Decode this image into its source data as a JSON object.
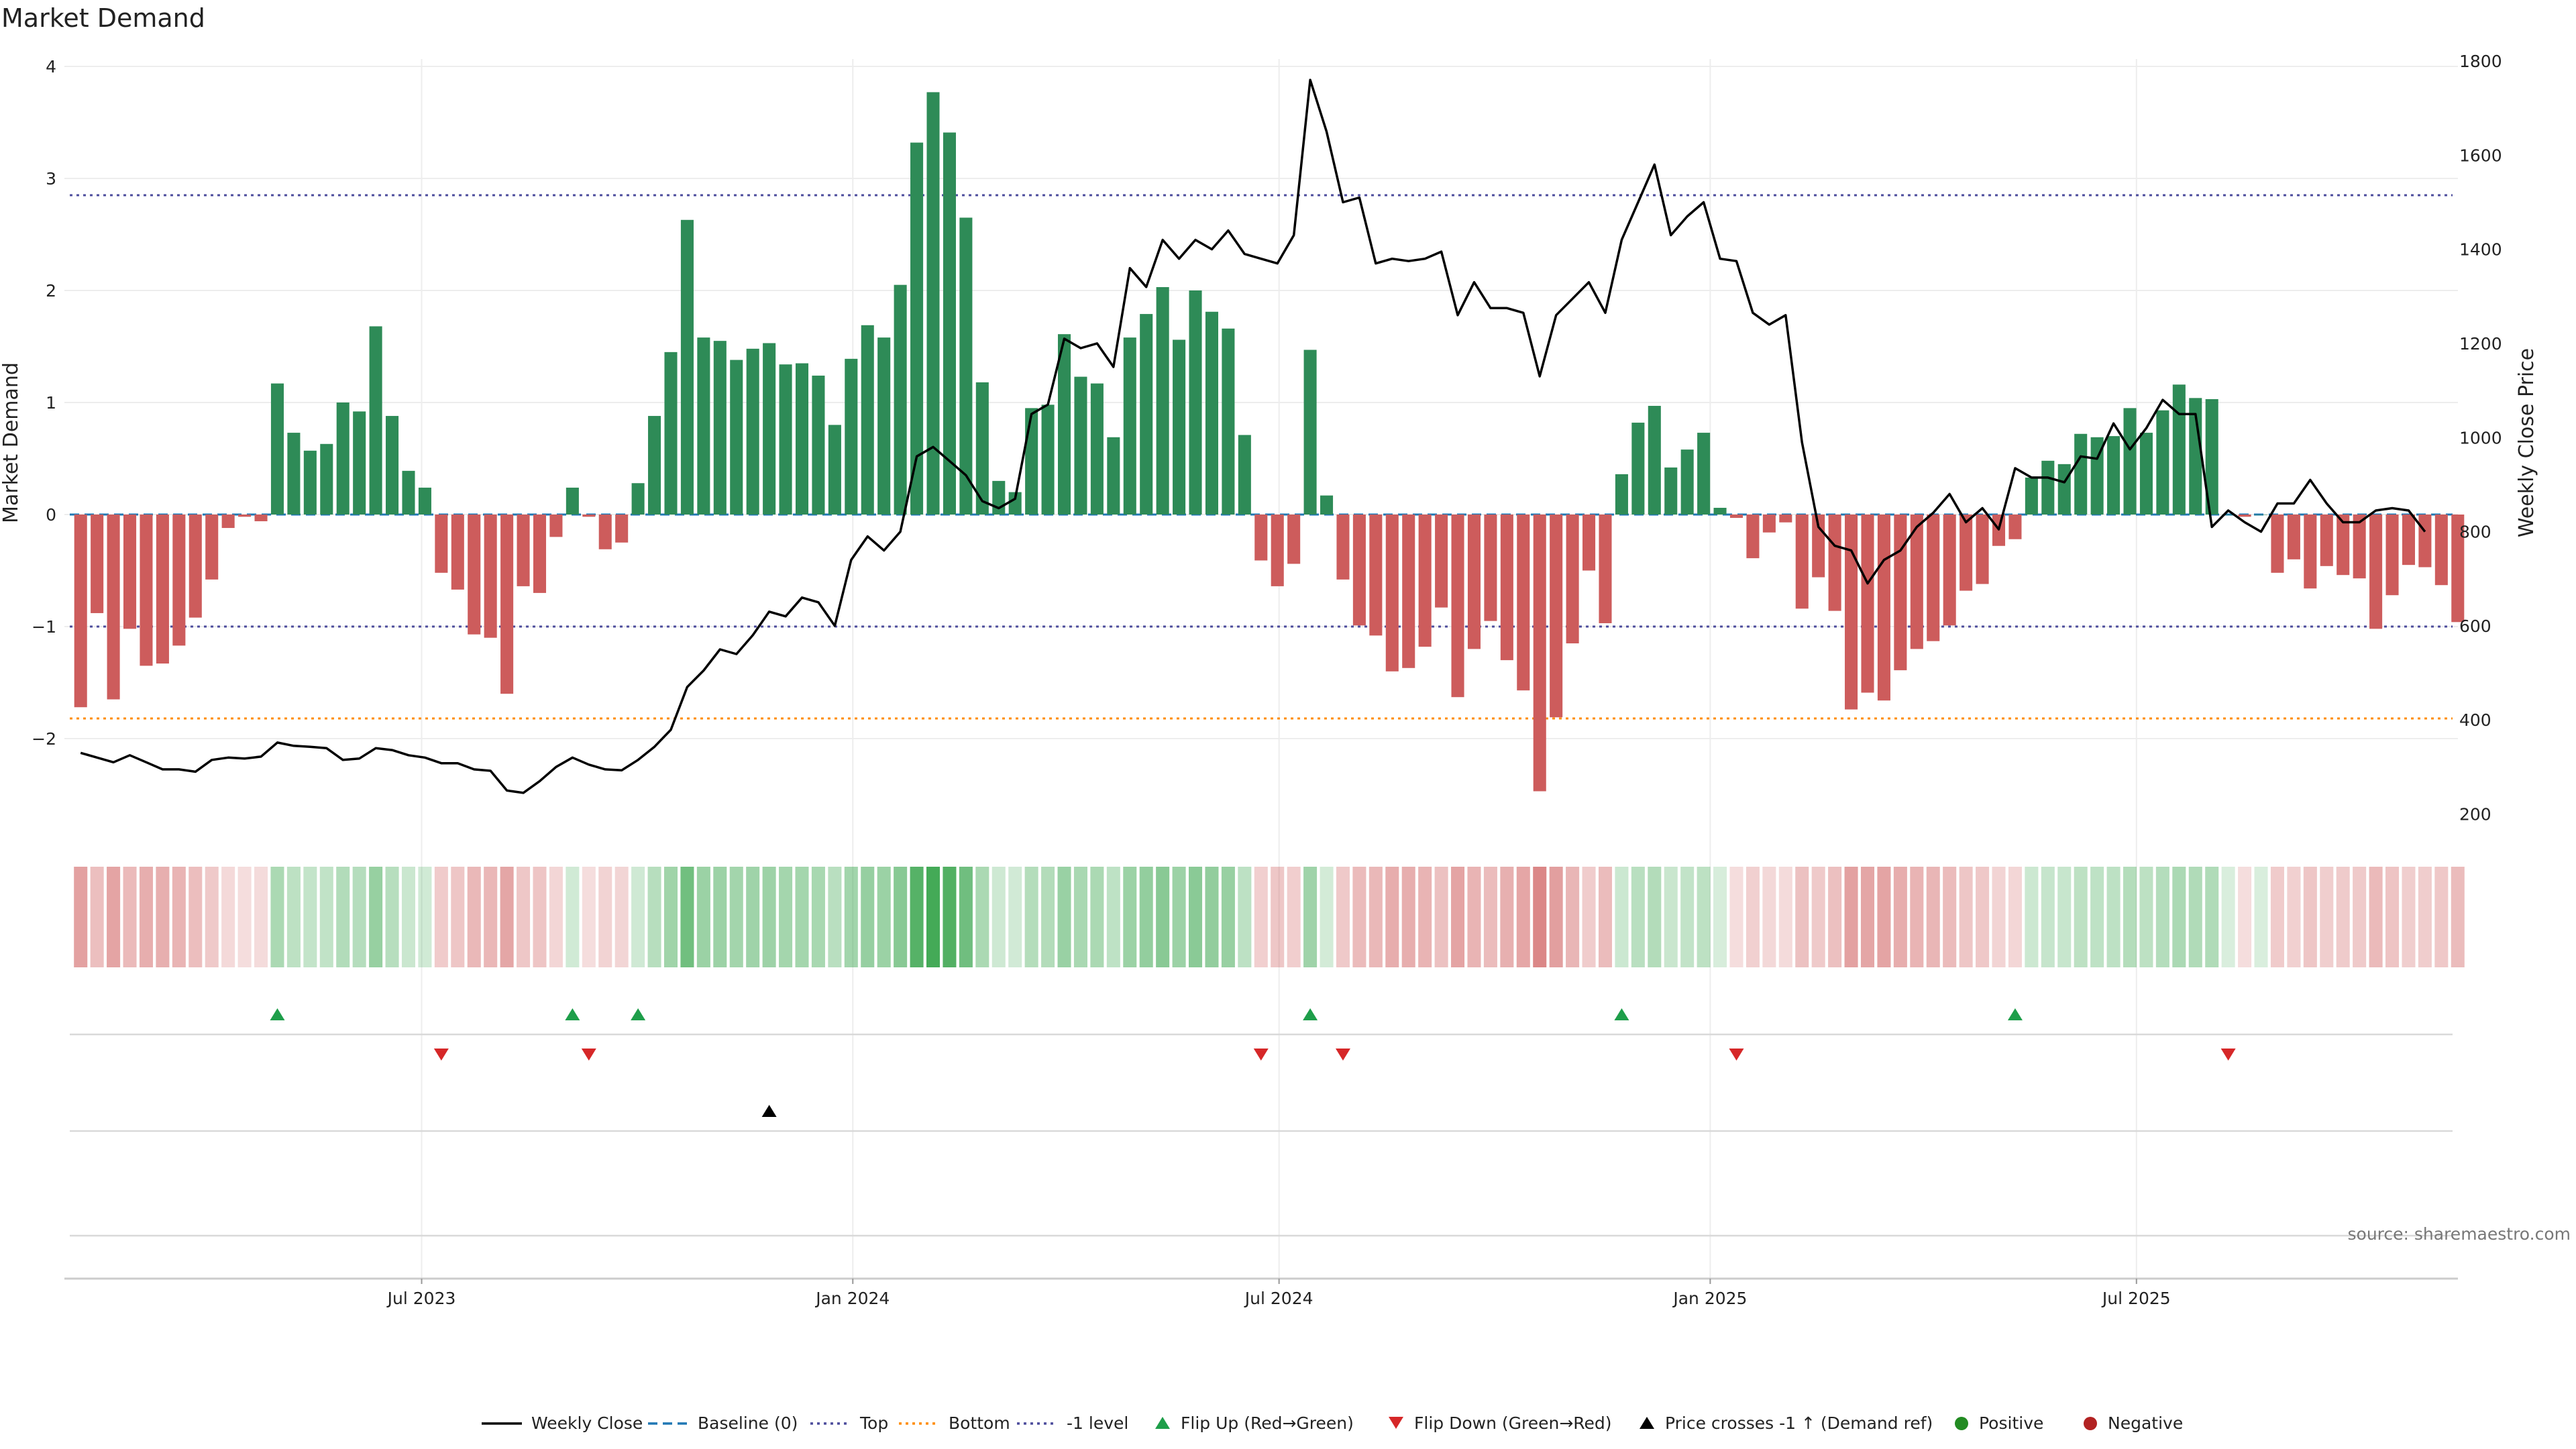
{
  "chart_data": {
    "type": "bar",
    "title": "Market Demand",
    "ylabel_left": "Market Demand",
    "ylabel_right": "Weekly Close Price",
    "ylim_left": [
      -2.8,
      4.05
    ],
    "ylim_right": [
      150,
      1800
    ],
    "yticks_left": [
      -2,
      -1,
      0,
      1,
      2,
      3,
      4
    ],
    "yticks_left_labels": [
      "−2",
      "−1",
      "0",
      "1",
      "2",
      "3",
      "4"
    ],
    "yticks_right": [
      200,
      400,
      600,
      800,
      1000,
      1200,
      1400,
      1600,
      1800
    ],
    "x_tick_labels": [
      "Jul 2023",
      "Jan 2024",
      "Jul 2024",
      "Jan 2025",
      "Jul 2025"
    ],
    "x_tick_index": [
      20.8,
      47.1,
      73.1,
      99.4,
      125.4
    ],
    "reference_lines": {
      "top": 2.85,
      "bottom": -1.82,
      "minus_one": -1.0,
      "baseline": 0
    },
    "demand": [
      -1.72,
      -0.88,
      -1.65,
      -1.02,
      -1.35,
      -1.33,
      -1.17,
      -0.92,
      -0.58,
      -0.12,
      -0.02,
      -0.06,
      1.17,
      0.73,
      0.57,
      0.63,
      1.0,
      0.92,
      1.68,
      0.88,
      0.39,
      0.24,
      -0.52,
      -0.67,
      -1.07,
      -1.1,
      -1.6,
      -0.64,
      -0.7,
      -0.2,
      0.24,
      -0.02,
      -0.31,
      -0.25,
      0.28,
      0.88,
      1.45,
      2.63,
      1.58,
      1.55,
      1.38,
      1.48,
      1.53,
      1.34,
      1.35,
      1.24,
      0.8,
      1.39,
      1.69,
      1.58,
      2.05,
      3.32,
      3.77,
      3.41,
      2.65,
      1.18,
      0.3,
      0.2,
      0.95,
      0.98,
      1.61,
      1.23,
      1.17,
      0.69,
      1.58,
      1.79,
      2.03,
      1.56,
      2.0,
      1.81,
      1.66,
      0.71,
      -0.41,
      -0.64,
      -0.44,
      1.47,
      0.17,
      -0.58,
      -0.99,
      -1.08,
      -1.4,
      -1.37,
      -1.18,
      -0.83,
      -1.63,
      -1.2,
      -0.95,
      -1.3,
      -1.57,
      -2.47,
      -1.81,
      -1.15,
      -0.5,
      -0.97,
      0.36,
      0.82,
      0.97,
      0.42,
      0.58,
      0.73,
      0.06,
      -0.03,
      -0.39,
      -0.16,
      -0.07,
      -0.84,
      -0.56,
      -0.86,
      -1.74,
      -1.59,
      -1.66,
      -1.39,
      -1.2,
      -1.13,
      -0.99,
      -0.68,
      -0.62,
      -0.28,
      -0.22,
      0.33,
      0.48,
      0.45,
      0.72,
      0.69,
      0.7,
      0.95,
      0.73,
      0.93,
      1.16,
      1.04,
      1.03,
      0.0,
      -0.02,
      0.0,
      -0.52,
      -0.4,
      -0.66,
      -0.46,
      -0.54,
      -0.57,
      -1.02,
      -0.72,
      -0.45,
      -0.47,
      -0.63,
      -0.96
    ],
    "price": [
      330,
      320,
      310,
      325,
      310,
      295,
      295,
      290,
      315,
      320,
      318,
      322,
      352,
      345,
      343,
      340,
      315,
      318,
      340,
      336,
      325,
      320,
      308,
      308,
      295,
      292,
      250,
      245,
      270,
      300,
      320,
      305,
      295,
      293,
      315,
      343,
      379,
      470,
      505,
      550,
      540,
      580,
      630,
      620,
      660,
      650,
      600,
      740,
      790,
      760,
      800,
      960,
      980,
      950,
      920,
      865,
      850,
      870,
      1050,
      1070,
      1210,
      1190,
      1200,
      1150,
      1360,
      1320,
      1420,
      1380,
      1420,
      1400,
      1440,
      1390,
      1380,
      1370,
      1430,
      1760,
      1650,
      1500,
      1510,
      1370,
      1380,
      1375,
      1380,
      1395,
      1260,
      1330,
      1275,
      1275,
      1265,
      1130,
      1260,
      1295,
      1330,
      1265,
      1420,
      1500,
      1580,
      1430,
      1470,
      1500,
      1380,
      1375,
      1265,
      1240,
      1260,
      990,
      810,
      770,
      760,
      690,
      740,
      760,
      810,
      840,
      880,
      820,
      850,
      805,
      935,
      915,
      915,
      905,
      960,
      955,
      1030,
      975,
      1020,
      1080,
      1050,
      1050,
      810,
      845,
      820,
      800,
      860,
      860,
      910,
      860,
      820,
      820,
      845,
      850,
      845,
      800
    ],
    "flip_up_index": [
      12,
      30,
      34,
      75,
      94,
      118
    ],
    "flip_down_index": [
      22,
      31,
      72,
      77,
      101,
      131
    ],
    "price_cross_index": [
      42
    ],
    "colors": {
      "positive_bar": "#2e8b57",
      "negative_bar": "#cd5c5c",
      "price_line": "#000000",
      "baseline": "#1f77b4",
      "top_line": "#4c4c9c",
      "bottom_line": "#ff8c00",
      "minus_one_line": "#4c4c9c",
      "flip_up": "#1e9e4a",
      "flip_down": "#d62728",
      "price_cross": "#000000",
      "positive_dot": "#228b22",
      "negative_dot": "#b22222"
    },
    "legend": {
      "placement": "bottom-center",
      "items": [
        {
          "label": "Weekly Close",
          "kind": "line",
          "style": "solid"
        },
        {
          "label": "Baseline (0)",
          "kind": "line",
          "style": "dashed"
        },
        {
          "label": "Top",
          "kind": "line",
          "style": "dotted"
        },
        {
          "label": "Bottom",
          "kind": "line",
          "style": "dotted"
        },
        {
          "label": "-1 level",
          "kind": "line",
          "style": "dotted"
        },
        {
          "label": "Flip Up (Red→Green)",
          "kind": "triangle-up"
        },
        {
          "label": "Flip Down (Green→Red)",
          "kind": "triangle-down"
        },
        {
          "label": "Price crosses -1 ↑ (Demand ref)",
          "kind": "triangle-up-black"
        },
        {
          "label": "Positive",
          "kind": "dot"
        },
        {
          "label": "Negative",
          "kind": "dot"
        }
      ]
    },
    "source": "source: sharemaestro.com"
  }
}
